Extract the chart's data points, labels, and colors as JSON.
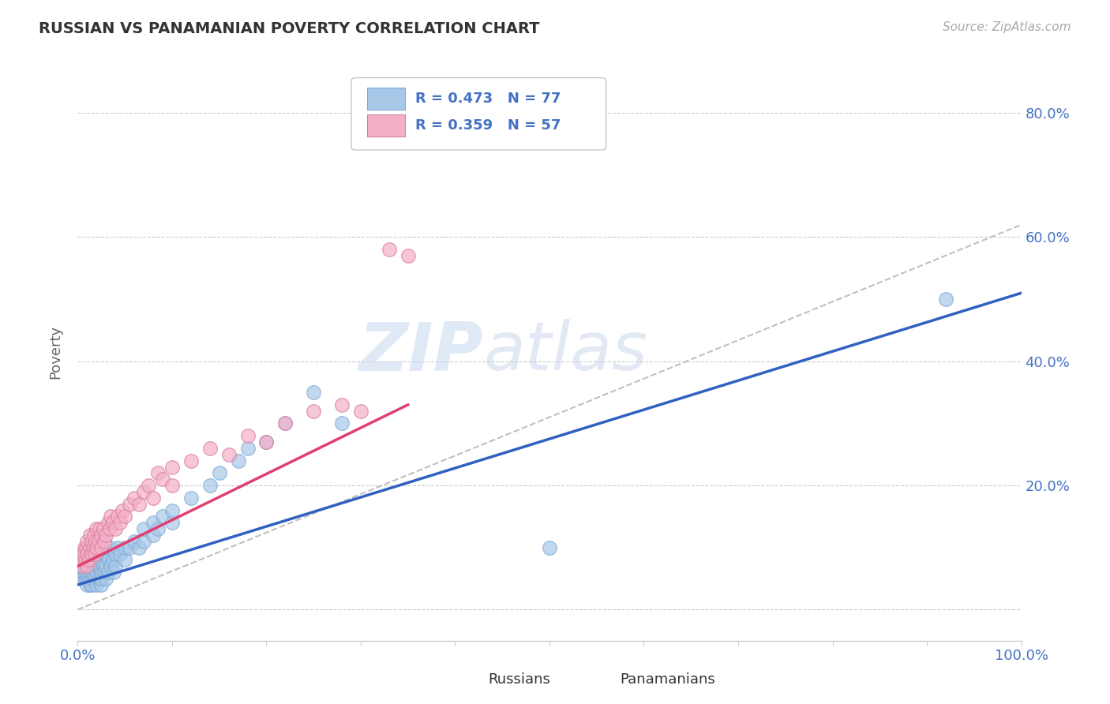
{
  "title": "RUSSIAN VS PANAMANIAN POVERTY CORRELATION CHART",
  "source": "Source: ZipAtlas.com",
  "ylabel": "Poverty",
  "xlim": [
    0,
    1.0
  ],
  "ylim": [
    -0.05,
    0.88
  ],
  "russian_R": "0.473",
  "russian_N": "77",
  "panamanian_R": "0.359",
  "panamanian_N": "57",
  "russian_color": "#a8c8e8",
  "panamanian_color": "#f4b0c8",
  "russian_line_color": "#3060c0",
  "panamanian_line_color": "#e04070",
  "watermark_zip": "ZIP",
  "watermark_atlas": "atlas",
  "legend_labels": [
    "Russians",
    "Panamanians"
  ],
  "russians_x": [
    0.005,
    0.005,
    0.005,
    0.005,
    0.008,
    0.008,
    0.008,
    0.01,
    0.01,
    0.01,
    0.01,
    0.01,
    0.01,
    0.012,
    0.012,
    0.012,
    0.013,
    0.013,
    0.015,
    0.015,
    0.015,
    0.015,
    0.015,
    0.016,
    0.016,
    0.018,
    0.018,
    0.018,
    0.02,
    0.02,
    0.02,
    0.022,
    0.022,
    0.023,
    0.025,
    0.025,
    0.025,
    0.025,
    0.027,
    0.028,
    0.03,
    0.03,
    0.03,
    0.032,
    0.033,
    0.035,
    0.035,
    0.037,
    0.038,
    0.04,
    0.04,
    0.042,
    0.045,
    0.05,
    0.05,
    0.055,
    0.06,
    0.065,
    0.07,
    0.07,
    0.08,
    0.08,
    0.085,
    0.09,
    0.1,
    0.1,
    0.12,
    0.14,
    0.15,
    0.17,
    0.18,
    0.2,
    0.22,
    0.25,
    0.28,
    0.5,
    0.92
  ],
  "russians_y": [
    0.05,
    0.06,
    0.07,
    0.08,
    0.05,
    0.06,
    0.07,
    0.04,
    0.05,
    0.06,
    0.07,
    0.08,
    0.09,
    0.05,
    0.06,
    0.07,
    0.04,
    0.08,
    0.04,
    0.05,
    0.06,
    0.07,
    0.08,
    0.06,
    0.09,
    0.05,
    0.07,
    0.1,
    0.04,
    0.06,
    0.08,
    0.05,
    0.07,
    0.09,
    0.04,
    0.05,
    0.06,
    0.08,
    0.07,
    0.06,
    0.05,
    0.07,
    0.09,
    0.06,
    0.08,
    0.07,
    0.1,
    0.08,
    0.06,
    0.07,
    0.09,
    0.1,
    0.09,
    0.08,
    0.1,
    0.1,
    0.11,
    0.1,
    0.11,
    0.13,
    0.12,
    0.14,
    0.13,
    0.15,
    0.14,
    0.16,
    0.18,
    0.2,
    0.22,
    0.24,
    0.26,
    0.27,
    0.3,
    0.35,
    0.3,
    0.1,
    0.5
  ],
  "panamanians_x": [
    0.004,
    0.005,
    0.006,
    0.007,
    0.008,
    0.009,
    0.01,
    0.01,
    0.01,
    0.012,
    0.013,
    0.013,
    0.015,
    0.015,
    0.016,
    0.017,
    0.018,
    0.019,
    0.02,
    0.02,
    0.022,
    0.023,
    0.025,
    0.025,
    0.027,
    0.028,
    0.03,
    0.032,
    0.034,
    0.035,
    0.037,
    0.04,
    0.042,
    0.045,
    0.047,
    0.05,
    0.055,
    0.06,
    0.065,
    0.07,
    0.075,
    0.08,
    0.085,
    0.09,
    0.1,
    0.1,
    0.12,
    0.14,
    0.16,
    0.18,
    0.2,
    0.22,
    0.25,
    0.28,
    0.3,
    0.33,
    0.35
  ],
  "panamanians_y": [
    0.07,
    0.08,
    0.09,
    0.1,
    0.08,
    0.1,
    0.07,
    0.09,
    0.11,
    0.08,
    0.1,
    0.12,
    0.09,
    0.11,
    0.1,
    0.12,
    0.09,
    0.11,
    0.1,
    0.13,
    0.11,
    0.13,
    0.1,
    0.12,
    0.13,
    0.11,
    0.12,
    0.14,
    0.13,
    0.15,
    0.14,
    0.13,
    0.15,
    0.14,
    0.16,
    0.15,
    0.17,
    0.18,
    0.17,
    0.19,
    0.2,
    0.18,
    0.22,
    0.21,
    0.2,
    0.23,
    0.24,
    0.26,
    0.25,
    0.28,
    0.27,
    0.3,
    0.32,
    0.33,
    0.32,
    0.58,
    0.57
  ],
  "yticks": [
    0.0,
    0.2,
    0.4,
    0.6,
    0.8
  ],
  "ytick_labels": [
    "",
    "20.0%",
    "40.0%",
    "60.0%",
    "80.0%"
  ],
  "xticks": [
    0.0,
    0.1,
    0.2,
    0.3,
    0.4,
    0.5,
    0.6,
    0.7,
    0.8,
    0.9,
    1.0
  ],
  "xtick_labels": [
    "0.0%",
    "",
    "",
    "",
    "",
    "",
    "",
    "",
    "",
    "",
    "100.0%"
  ],
  "blue_trend_x": [
    0.0,
    1.0
  ],
  "blue_trend_y": [
    0.04,
    0.51
  ],
  "pink_trend_x": [
    0.0,
    0.35
  ],
  "pink_trend_y": [
    0.07,
    0.33
  ],
  "dash_line_x": [
    0.0,
    1.0
  ],
  "dash_line_y": [
    0.0,
    0.62
  ]
}
